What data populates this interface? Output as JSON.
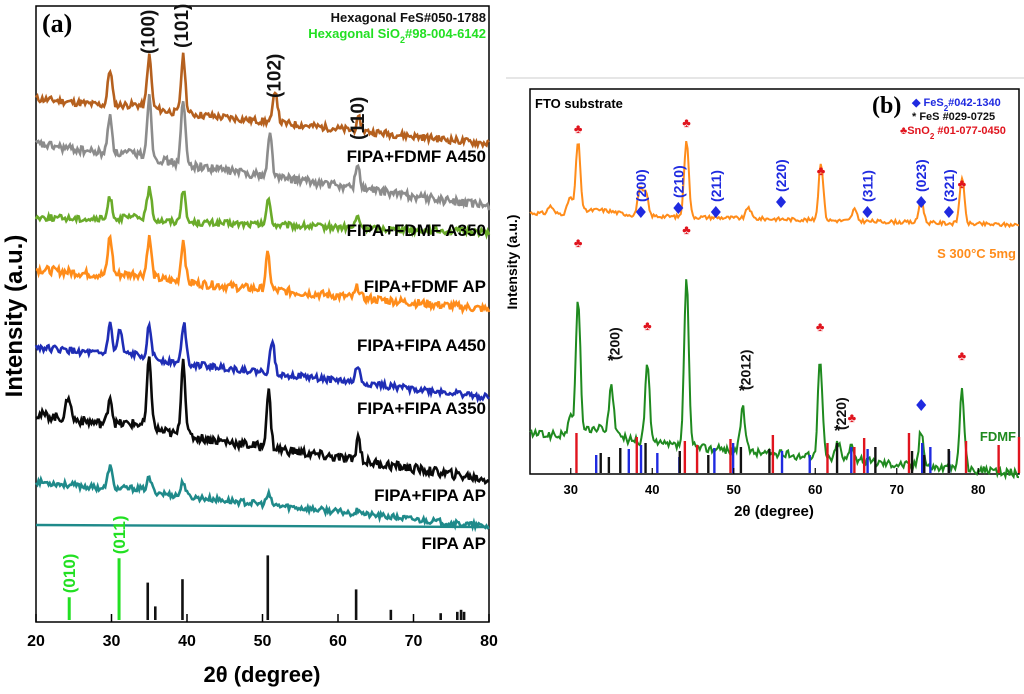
{
  "figure": {
    "colors": {
      "FIPA AP": "#1f8a8a",
      "FIPA+FIPA AP": "#1f8a8a",
      "FIPA+FIPA A350": "#0a0a0a",
      "FIPA+FIPA A450": "#1f2db5",
      "FIPA+FDMF AP": "#ff8c1a",
      "FIPA+FDMF A350": "#6aab2a",
      "FIPA+FDMF A450": "#8c8c8c",
      "top": "#b5601e",
      "green_ref": "#22e022",
      "blue_ref": "#1f2ae0",
      "red_ref": "#e0141e",
      "S 300": "#ff8c1a",
      "FDMF": "#1f8a1f"
    }
  },
  "chart_data": [
    {
      "type": "line",
      "panel_label": "(a)",
      "xlabel": "2θ (degree)",
      "ylabel": "Intensity (a.u.)",
      "xlim": [
        20,
        80
      ],
      "xticks": [
        "20",
        "30",
        "40",
        "50",
        "60",
        "70",
        "80"
      ],
      "legend": [
        {
          "text": "Hexagonal FeS#050-1788",
          "color": "#111111"
        },
        {
          "text_main": "Hexagonal SiO",
          "sub": "2",
          "text_tail": "#98-004-6142",
          "color": "#22e022"
        }
      ],
      "series": [
        {
          "name": "top",
          "label": "",
          "peaks": [
            [
              29.8,
              0.6
            ],
            [
              35.0,
              0.85
            ],
            [
              39.5,
              0.95
            ],
            [
              51.7,
              0.55
            ],
            [
              62.8,
              0.2
            ]
          ]
        },
        {
          "name": "FIPA+FDMF A450",
          "label": "FIPA+FDMF A450",
          "peaks": [
            [
              29.8,
              0.55
            ],
            [
              35.0,
              0.85
            ],
            [
              39.5,
              0.9
            ],
            [
              51.0,
              0.6
            ],
            [
              62.6,
              0.35
            ]
          ]
        },
        {
          "name": "FIPA+FDMF A350",
          "label": "FIPA+FDMF A350",
          "peaks": [
            [
              29.8,
              0.4
            ],
            [
              35.0,
              0.55
            ],
            [
              39.5,
              0.6
            ],
            [
              50.8,
              0.45
            ],
            [
              62.6,
              0.2
            ]
          ]
        },
        {
          "name": "FIPA+FDMF AP",
          "label": "FIPA+FDMF AP",
          "peaks": [
            [
              29.8,
              0.55
            ],
            [
              35.0,
              0.55
            ],
            [
              39.5,
              0.6
            ],
            [
              50.7,
              0.5
            ],
            [
              62.6,
              0.15
            ]
          ]
        },
        {
          "name": "FIPA+FIPA A450",
          "label": "FIPA+FIPA A450",
          "peaks": [
            [
              29.8,
              0.55
            ],
            [
              31.1,
              0.45
            ],
            [
              35.0,
              0.55
            ],
            [
              39.6,
              0.75
            ],
            [
              51.3,
              0.6
            ],
            [
              62.6,
              0.3
            ]
          ]
        },
        {
          "name": "FIPA+FIPA A350",
          "label": "FIPA+FIPA A350",
          "peaks": [
            [
              24.3,
              0.3
            ],
            [
              29.8,
              0.35
            ],
            [
              35.0,
              0.85
            ],
            [
              39.5,
              0.95
            ],
            [
              50.8,
              0.7
            ],
            [
              62.7,
              0.3
            ]
          ]
        },
        {
          "name": "FIPA+FIPA AP",
          "label": "FIPA+FIPA AP",
          "peaks": [
            [
              29.8,
              0.45
            ],
            [
              35.0,
              0.25
            ],
            [
              39.5,
              0.3
            ],
            [
              50.8,
              0.2
            ],
            [
              62.8,
              0.1
            ]
          ]
        },
        {
          "name": "FIPA AP",
          "label": "FIPA AP",
          "peaks": []
        }
      ],
      "miller": [
        {
          "text": "(100)",
          "x": 35.0,
          "color": "#111111"
        },
        {
          "text": "(101)",
          "x": 39.5,
          "color": "#111111"
        },
        {
          "text": "(102)",
          "x": 51.7,
          "color": "#111111"
        },
        {
          "text": "(110)",
          "x": 62.8,
          "color": "#111111"
        }
      ],
      "reference_sticks_fes": [
        [
          34.8,
          0.55
        ],
        [
          35.8,
          0.2
        ],
        [
          39.4,
          0.6
        ],
        [
          50.7,
          0.95
        ],
        [
          62.4,
          0.45
        ],
        [
          67.0,
          0.15
        ],
        [
          73.6,
          0.1
        ],
        [
          75.8,
          0.12
        ],
        [
          76.3,
          0.15
        ],
        [
          76.7,
          0.12
        ]
      ],
      "reference_sticks_sio2": [
        {
          "x": 24.4,
          "h": 0.35,
          "label": "(010)"
        },
        {
          "x": 31.0,
          "h": 0.95,
          "label": "(011)"
        }
      ]
    },
    {
      "type": "line",
      "panel_label": "(b)",
      "corner_text": "FTO substrate",
      "xlabel": "2θ (degree)",
      "ylabel": "Intensity (a.u.)",
      "xlim": [
        25,
        85
      ],
      "xticks": [
        "30",
        "40",
        "50",
        "60",
        "70",
        "80"
      ],
      "legend": [
        {
          "symbol": "◆",
          "text_main": " FeS",
          "sub": "2",
          "text_tail": "#042-1340",
          "color": "#1f2ae0"
        },
        {
          "symbol": "*",
          "text_main": " FeS #029-0725",
          "sub": "",
          "text_tail": "",
          "color": "#111111"
        },
        {
          "symbol": "♣",
          "text_main": "SnO",
          "sub": "2",
          "text_tail": " #01-077-0450",
          "color": "#e0141e"
        }
      ],
      "series": [
        {
          "name": "S 300",
          "label": "S 300°C 5mg",
          "peaks": [
            [
              27.5,
              0.1
            ],
            [
              29.9,
              0.2
            ],
            [
              30.9,
              0.9
            ],
            [
              38.5,
              0.35
            ],
            [
              39.2,
              0.3
            ],
            [
              44.2,
              1.0
            ],
            [
              51.8,
              0.15
            ],
            [
              60.7,
              0.75
            ],
            [
              64.8,
              0.15
            ],
            [
              73.0,
              0.3
            ],
            [
              78.0,
              0.6
            ]
          ]
        },
        {
          "name": "FDMF",
          "label": "FDMF",
          "peaks": [
            [
              29.9,
              0.1
            ],
            [
              30.9,
              0.75
            ],
            [
              35.0,
              0.25
            ],
            [
              39.4,
              0.45
            ],
            [
              44.2,
              0.95
            ],
            [
              51.1,
              0.25
            ],
            [
              60.6,
              0.55
            ],
            [
              62.8,
              0.1
            ],
            [
              64.5,
              0.1
            ],
            [
              73.0,
              0.2
            ],
            [
              78.0,
              0.45
            ]
          ]
        }
      ],
      "annotations_blue": [
        {
          "label": "(200)",
          "x": 38.6
        },
        {
          "label": "(210)",
          "x": 43.2
        },
        {
          "label": "(211)",
          "x": 47.8
        },
        {
          "label": "(220)",
          "x": 55.8
        },
        {
          "label": "(311)",
          "x": 66.4
        },
        {
          "label": "(023)",
          "x": 73.0
        },
        {
          "label": "(321)",
          "x": 76.4
        }
      ],
      "annotations_black": [
        {
          "label": "(200)",
          "x": 35.0
        },
        {
          "label": "(2012)",
          "x": 51.1
        },
        {
          "label": "(220)",
          "x": 62.8
        }
      ],
      "clubs_s300": [
        30.9,
        44.2,
        60.7,
        78.0
      ],
      "clubs_fdmf": [
        30.9,
        39.4,
        44.2,
        60.6,
        64.5,
        78.0
      ],
      "fdmf_diamond_x": 73.0,
      "ref_red": [
        30.7,
        38.1,
        44.0,
        45.5,
        49.6,
        54.8,
        61.5,
        64.8,
        66.0,
        71.5,
        78.5,
        82.5,
        85.0
      ],
      "ref_blue": [
        33.0,
        37.0,
        38.5,
        40.5,
        43.2,
        47.5,
        49.8,
        55.8,
        59.2,
        64.3,
        66.3,
        73.0,
        74.0,
        76.3
      ],
      "ref_black": [
        33.8,
        34.8,
        36.2,
        39.3,
        43.5,
        47.0,
        51.0,
        54.5,
        62.8,
        67.5,
        72.0,
        73.5,
        76.5
      ]
    }
  ]
}
